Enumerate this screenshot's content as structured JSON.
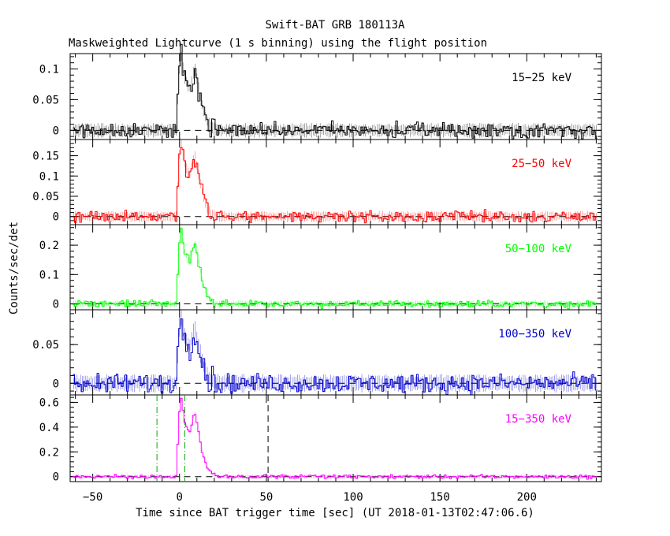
{
  "chart_data": {
    "type": "line",
    "title": "Swift-BAT GRB 180113A",
    "subtitle": "Maskweighted Lightcurve (1 s binning) using the flight position",
    "xlabel": "Time since BAT trigger time [sec] (UT 2018-01-13T02:47:06.6)",
    "ylabel": "Counts/sec/det",
    "xlim": [
      -63,
      243
    ],
    "x_ticks": [
      -50,
      0,
      50,
      100,
      150,
      200
    ],
    "x_tick_labels": [
      "−50",
      "0",
      "50",
      "100",
      "150",
      "200"
    ],
    "data_x_range": [
      -61,
      240
    ],
    "grid": false,
    "legend": "none",
    "series_shape": [
      [
        -10,
        0.0
      ],
      [
        -2,
        0.0
      ],
      [
        0,
        0.85
      ],
      [
        1,
        1.0
      ],
      [
        2,
        0.85
      ],
      [
        3,
        0.72
      ],
      [
        5,
        0.6
      ],
      [
        6,
        0.58
      ],
      [
        8,
        0.78
      ],
      [
        9,
        0.82
      ],
      [
        10,
        0.7
      ],
      [
        12,
        0.45
      ],
      [
        14,
        0.25
      ],
      [
        16,
        0.12
      ],
      [
        18,
        0.05
      ],
      [
        20,
        0.02
      ],
      [
        22,
        0.0
      ]
    ],
    "panels": [
      {
        "name": "15−25 keV",
        "color": "#000000",
        "ylim": [
          -0.015,
          0.125
        ],
        "ticks": [
          0,
          0.05,
          0.1
        ],
        "tick_labels": [
          "0",
          "0.05",
          "0.1"
        ],
        "peak": 0.12,
        "noise": 0.006
      },
      {
        "name": "25−50 keV",
        "color": "#ff0000",
        "ylim": [
          -0.02,
          0.19
        ],
        "ticks": [
          0,
          0.05,
          0.1,
          0.15
        ],
        "tick_labels": [
          "0",
          "0.05",
          "0.1",
          "0.15"
        ],
        "peak": 0.18,
        "noise": 0.007
      },
      {
        "name": "50−100 keV",
        "color": "#00ff00",
        "ylim": [
          -0.02,
          0.27
        ],
        "ticks": [
          0,
          0.1,
          0.2
        ],
        "tick_labels": [
          "0",
          "0.1",
          "0.2"
        ],
        "peak": 0.25,
        "noise": 0.006
      },
      {
        "name": "100−350 keV",
        "color": "#0000cc",
        "ylim": [
          -0.015,
          0.095
        ],
        "ticks": [
          0,
          0.05
        ],
        "tick_labels": [
          "0",
          "0.05"
        ],
        "peak": 0.085,
        "noise": 0.006
      },
      {
        "name": "15−350 keV",
        "color": "#ff00ff",
        "ylim": [
          -0.04,
          0.66
        ],
        "ticks": [
          0,
          0.2,
          0.4,
          0.6
        ],
        "tick_labels": [
          "0",
          "0.2",
          "0.4",
          "0.6"
        ],
        "peak": 0.62,
        "noise": 0.008
      }
    ],
    "markers": [
      {
        "x": -13,
        "style": "dash-dot",
        "color": "#00aa00"
      },
      {
        "x": 3,
        "style": "dash-dot",
        "color": "#00aa00"
      },
      {
        "x": 51,
        "style": "dashed",
        "color": "#000000"
      }
    ]
  }
}
